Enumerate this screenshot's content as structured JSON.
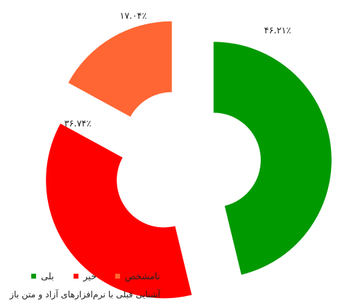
{
  "chart_data": {
    "type": "pie",
    "variant": "donut-exploded",
    "title": "آشنایی قبلی با نرم‌افزارهای آزاد و متن باز",
    "categories": [
      "بلی",
      "خیر",
      "نامشخص"
    ],
    "values": [
      46.21,
      36.74,
      17.04
    ],
    "value_labels": [
      "۴۶.۲۱٪",
      "۳۶.۷۴٪",
      "۱۷.۰۴٪"
    ],
    "colors": [
      "#009900",
      "#ff0000",
      "#ff6633"
    ],
    "legend_placement": "bottom-left"
  }
}
